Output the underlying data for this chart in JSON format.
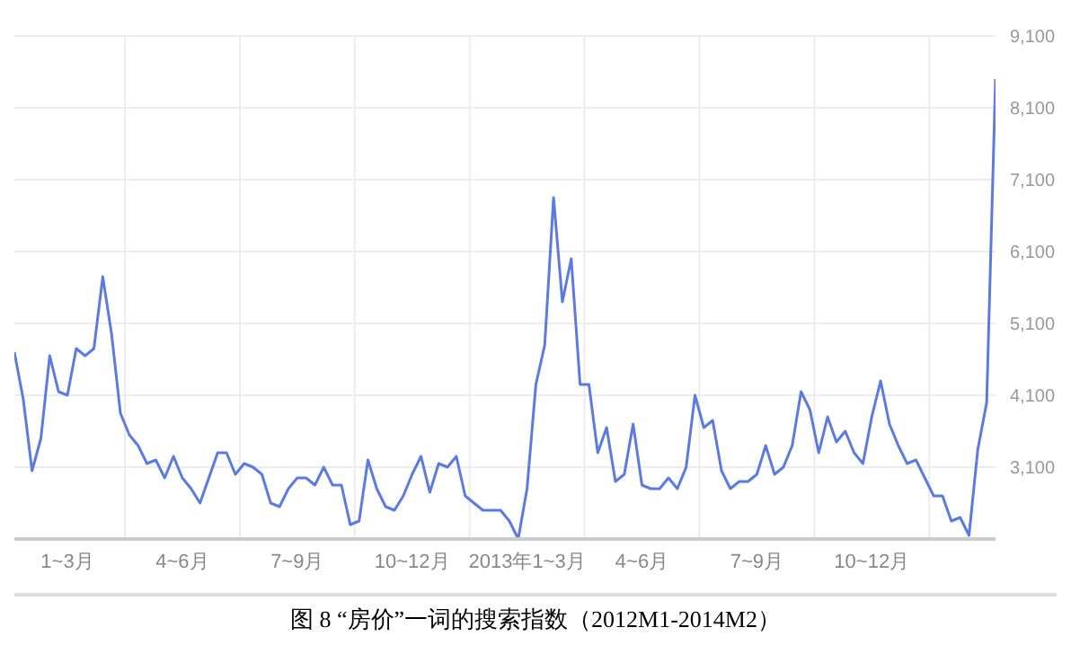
{
  "chart_data": {
    "type": "line",
    "title": "图 8 “房价”一词的搜索指数（2012M1-2014M2）",
    "categories": [
      null,
      null,
      null,
      null,
      null,
      null,
      "1~3月",
      null,
      null,
      null,
      null,
      null,
      null,
      null,
      null,
      null,
      null,
      null,
      null,
      "4~6月",
      null,
      null,
      null,
      null,
      null,
      null,
      null,
      null,
      null,
      null,
      null,
      null,
      "7~9月",
      null,
      null,
      null,
      null,
      null,
      null,
      null,
      null,
      null,
      null,
      null,
      null,
      "10~12月",
      null,
      null,
      null,
      null,
      null,
      null,
      null,
      null,
      null,
      null,
      null,
      null,
      "2013年1~3月",
      null,
      null,
      null,
      null,
      null,
      null,
      null,
      null,
      null,
      null,
      null,
      null,
      "4~6月",
      null,
      null,
      null,
      null,
      null,
      null,
      null,
      null,
      null,
      null,
      null,
      null,
      "7~9月",
      null,
      null,
      null,
      null,
      null,
      null,
      null,
      null,
      null,
      null,
      null,
      null,
      "10~12月",
      null,
      null,
      null,
      null,
      null,
      null,
      null,
      null,
      null,
      null,
      null,
      null,
      null,
      null
    ],
    "series": [
      {
        "color": "#5b7be0",
        "values": [
          4700,
          4050,
          3050,
          3500,
          4650,
          4150,
          4100,
          4750,
          4650,
          4750,
          5750,
          4950,
          3850,
          3550,
          3400,
          3150,
          3200,
          2950,
          3250,
          2950,
          2800,
          2600,
          2950,
          3300,
          3300,
          3000,
          3150,
          3100,
          3000,
          2600,
          2550,
          2800,
          2950,
          2950,
          2850,
          3100,
          2850,
          2850,
          2300,
          2350,
          3200,
          2800,
          2550,
          2500,
          2700,
          3000,
          3250,
          2750,
          3150,
          3100,
          3250,
          2700,
          2600,
          2500,
          2500,
          2500,
          2350,
          2100,
          2800,
          4250,
          4800,
          6850,
          5400,
          6000,
          4250,
          4250,
          3300,
          3650,
          2900,
          3000,
          3700,
          2850,
          2800,
          2800,
          2950,
          2800,
          3100,
          4100,
          3650,
          3750,
          3050,
          2800,
          2900,
          2900,
          3000,
          3400,
          3000,
          3100,
          3400,
          4150,
          3900,
          3300,
          3800,
          3450,
          3600,
          3300,
          3150,
          3800,
          4300,
          3700,
          3400,
          3150,
          3200,
          2950,
          2700,
          2700,
          2350,
          2400,
          2150,
          3350,
          4000,
          8500
        ]
      }
    ],
    "ylim": [
      2100,
      9100
    ],
    "yticks": [
      {
        "value": 3100,
        "label": "3,100"
      },
      {
        "value": 4100,
        "label": "4,100"
      },
      {
        "value": 5100,
        "label": "5,100"
      },
      {
        "value": 6100,
        "label": "6,100"
      },
      {
        "value": 7100,
        "label": "7,100"
      },
      {
        "value": 8100,
        "label": "8,100"
      },
      {
        "value": 9100,
        "label": "9,100"
      }
    ],
    "grid": true,
    "marker": "none",
    "line_style": "solid",
    "legend": false
  }
}
